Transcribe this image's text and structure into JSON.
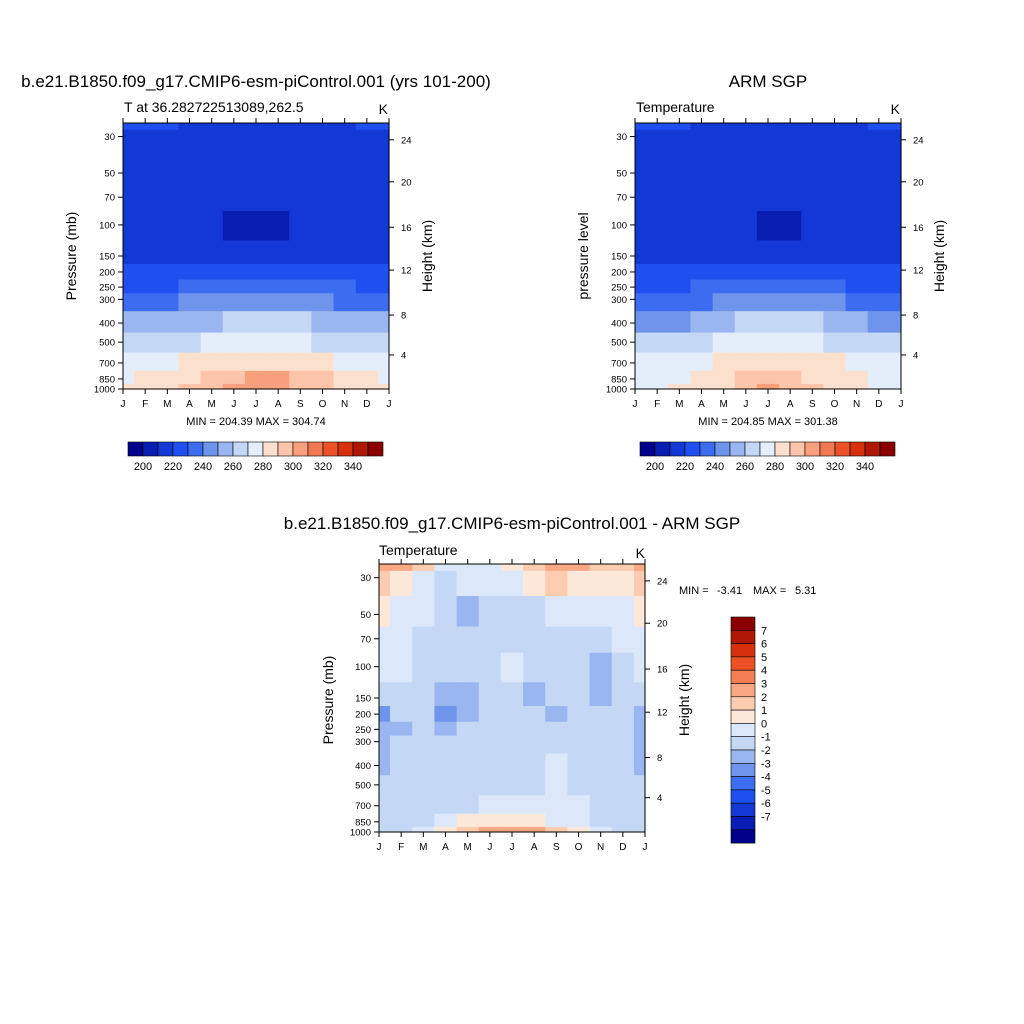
{
  "colors": {
    "abs_palette": [
      "#00008b",
      "#0a1db3",
      "#1438d6",
      "#1e50f0",
      "#3c6cf0",
      "#6e94ec",
      "#9ab6f0",
      "#c4d8f6",
      "#e4eefa",
      "#fce0ce",
      "#fcc4a8",
      "#f8a07c",
      "#f27a52",
      "#ec522a",
      "#d6300e",
      "#b01806",
      "#8a0000"
    ],
    "diff_palette": [
      "#00008b",
      "#0a1db3",
      "#1438d6",
      "#1e50f0",
      "#3c6cf0",
      "#6e94ec",
      "#9ab6f0",
      "#c4d8f6",
      "#dce8fa",
      "#fce8d8",
      "#fcccb0",
      "#f8a882",
      "#f27e54",
      "#ec5226",
      "#d6300e",
      "#b01806",
      "#8a0000"
    ]
  },
  "panels": [
    {
      "id": "model",
      "title": "b.e21.B1850.f09_g17.CMIP6-esm-piControl.001 (yrs 101-200)",
      "left_label": "T at 36.282722513089,262.5",
      "right_label": "K",
      "ylabel": "Pressure (mb)",
      "ylabel_right": "Height (km)",
      "stats": "MIN = 204.39 MAX = 304.74",
      "colorbar_labels": [
        "200",
        "220",
        "240",
        "260",
        "280",
        "300",
        "320",
        "340"
      ]
    },
    {
      "id": "obs",
      "title": "ARM SGP",
      "left_label": "Temperature",
      "right_label": "K",
      "ylabel": "pressure level",
      "ylabel_right": "Height (km)",
      "stats": "MIN = 204.85 MAX = 301.38",
      "colorbar_labels": [
        "200",
        "220",
        "240",
        "260",
        "280",
        "300",
        "320",
        "340"
      ]
    },
    {
      "id": "diff",
      "title": "b.e21.B1850.f09_g17.CMIP6-esm-piControl.001 - ARM SGP",
      "left_label": "Temperature",
      "right_label": "K",
      "ylabel": "Pressure (mb)",
      "ylabel_right": "Height (km)",
      "stats_min_label": "MIN =",
      "stats_min": "-3.41",
      "stats_max_label": "MAX =",
      "stats_max": "5.31",
      "colorbar_labels": [
        "7",
        "6",
        "5",
        "4",
        "3",
        "2",
        "1",
        "0",
        "-1",
        "-2",
        "-3",
        "-4",
        "-5",
        "-6",
        "-7"
      ]
    }
  ],
  "chart_data": [
    {
      "type": "heatmap",
      "title": "b.e21.B1850.f09_g17.CMIP6-esm-piControl.001 (yrs 101-200)",
      "ylabel": "Pressure (mb)",
      "x_ticks": [
        "J",
        "F",
        "M",
        "A",
        "M",
        "J",
        "J",
        "A",
        "S",
        "O",
        "N",
        "D",
        "J"
      ],
      "y_ticks": [
        30,
        50,
        70,
        100,
        150,
        200,
        250,
        300,
        400,
        500,
        700,
        850,
        1000
      ],
      "y_ticks_right": [
        24,
        20,
        16,
        12,
        8,
        4
      ],
      "levels": [
        25,
        30,
        50,
        70,
        100,
        150,
        200,
        250,
        300,
        400,
        500,
        700,
        850,
        1000
      ],
      "values": [
        [
          222,
          220,
          220,
          218,
          216,
          214,
          212,
          212,
          214,
          216,
          218,
          220,
          222
        ],
        [
          219,
          218,
          218,
          217,
          216,
          215,
          215,
          215,
          216,
          217,
          218,
          219,
          219
        ],
        [
          214,
          214,
          214,
          213,
          213,
          213,
          213,
          213,
          213,
          213,
          214,
          214,
          214
        ],
        [
          215,
          215,
          213,
          212,
          211,
          210,
          210,
          210,
          211,
          212,
          213,
          214,
          215
        ],
        [
          214,
          214,
          214,
          212,
          210,
          209,
          209,
          209,
          210,
          212,
          214,
          214,
          214
        ],
        [
          218,
          218,
          218,
          218,
          216,
          216,
          216,
          216,
          216,
          218,
          218,
          218,
          218
        ],
        [
          222,
          222,
          222,
          224,
          226,
          228,
          228,
          228,
          228,
          226,
          224,
          222,
          222
        ],
        [
          228,
          228,
          228,
          232,
          236,
          238,
          238,
          238,
          236,
          232,
          230,
          228,
          228
        ],
        [
          236,
          236,
          236,
          240,
          246,
          248,
          248,
          248,
          246,
          242,
          238,
          236,
          236
        ],
        [
          250,
          250,
          250,
          254,
          258,
          262,
          262,
          262,
          260,
          256,
          252,
          250,
          250
        ],
        [
          262,
          262,
          264,
          268,
          272,
          274,
          274,
          274,
          272,
          268,
          264,
          262,
          262
        ],
        [
          274,
          274,
          276,
          280,
          284,
          288,
          288,
          288,
          286,
          282,
          278,
          274,
          274
        ],
        [
          278,
          280,
          282,
          288,
          294,
          298,
          300,
          300,
          296,
          290,
          284,
          280,
          278
        ],
        [
          280,
          282,
          284,
          290,
          296,
          302,
          304,
          302,
          298,
          292,
          286,
          282,
          280
        ]
      ],
      "min": 204.39,
      "max": 304.74,
      "colorbar": [
        200,
        220,
        240,
        260,
        280,
        300,
        320,
        340
      ]
    },
    {
      "type": "heatmap",
      "title": "ARM SGP",
      "ylabel": "pressure level",
      "x_ticks": [
        "J",
        "F",
        "M",
        "A",
        "M",
        "J",
        "J",
        "A",
        "S",
        "O",
        "N",
        "D",
        "J"
      ],
      "y_ticks": [
        30,
        50,
        70,
        100,
        150,
        200,
        250,
        300,
        400,
        500,
        700,
        850,
        1000
      ],
      "y_ticks_right": [
        24,
        20,
        16,
        12,
        8,
        4
      ],
      "levels": [
        25,
        30,
        50,
        70,
        100,
        150,
        200,
        250,
        300,
        400,
        500,
        700,
        850,
        1000
      ],
      "values": [
        [
          220,
          220,
          220,
          218,
          216,
          214,
          212,
          212,
          214,
          216,
          218,
          220,
          220
        ],
        [
          218,
          218,
          218,
          217,
          216,
          215,
          215,
          215,
          216,
          217,
          218,
          218,
          218
        ],
        [
          213,
          213,
          213,
          213,
          213,
          213,
          213,
          213,
          213,
          213,
          213,
          213,
          213
        ],
        [
          210,
          211,
          212,
          211,
          211,
          210,
          210,
          210,
          211,
          211,
          211,
          210,
          211
        ],
        [
          213,
          213,
          213,
          212,
          211,
          210,
          209,
          209,
          210,
          211,
          212,
          213,
          213
        ],
        [
          216,
          216,
          216,
          216,
          215,
          214,
          214,
          214,
          214,
          215,
          216,
          216,
          216
        ],
        [
          222,
          222,
          222,
          224,
          226,
          228,
          228,
          228,
          228,
          226,
          224,
          222,
          222
        ],
        [
          226,
          226,
          226,
          230,
          234,
          238,
          238,
          238,
          236,
          232,
          228,
          226,
          226
        ],
        [
          234,
          234,
          234,
          238,
          244,
          248,
          248,
          248,
          246,
          240,
          236,
          234,
          234
        ],
        [
          248,
          248,
          248,
          252,
          256,
          260,
          262,
          262,
          260,
          254,
          250,
          248,
          248
        ],
        [
          260,
          260,
          262,
          266,
          270,
          272,
          274,
          272,
          270,
          266,
          262,
          260,
          260
        ],
        [
          270,
          272,
          274,
          278,
          282,
          284,
          286,
          286,
          284,
          280,
          276,
          272,
          270
        ],
        [
          274,
          276,
          278,
          282,
          286,
          290,
          292,
          292,
          288,
          284,
          280,
          276,
          274
        ],
        [
          276,
          278,
          280,
          284,
          288,
          294,
          300,
          296,
          290,
          286,
          282,
          278,
          276
        ]
      ],
      "min": 204.85,
      "max": 301.38,
      "colorbar": [
        200,
        220,
        240,
        260,
        280,
        300,
        320,
        340
      ]
    },
    {
      "type": "heatmap",
      "title": "b.e21.B1850.f09_g17.CMIP6-esm-piControl.001 - ARM SGP",
      "ylabel": "Pressure (mb)",
      "x_ticks": [
        "J",
        "F",
        "M",
        "A",
        "M",
        "J",
        "J",
        "A",
        "S",
        "O",
        "N",
        "D",
        "J"
      ],
      "y_ticks": [
        30,
        50,
        70,
        100,
        150,
        200,
        250,
        300,
        400,
        500,
        700,
        850,
        1000
      ],
      "y_ticks_right": [
        24,
        20,
        16,
        12,
        8,
        4
      ],
      "levels": [
        25,
        30,
        50,
        70,
        100,
        150,
        200,
        250,
        300,
        400,
        500,
        700,
        850,
        1000
      ],
      "values": [
        [
          3.5,
          3.5,
          2.0,
          0.5,
          0.3,
          0.5,
          1.0,
          2.0,
          3.5,
          3.5,
          2.5,
          2.5,
          3.5
        ],
        [
          2.0,
          1.5,
          0.5,
          -0.5,
          0.0,
          0.5,
          0.5,
          1.0,
          2.0,
          1.5,
          1.0,
          1.0,
          2.0
        ],
        [
          1.0,
          0.5,
          0.0,
          -0.5,
          -1.5,
          -0.5,
          -0.5,
          -0.5,
          0.0,
          0.0,
          0.0,
          0.5,
          1.0
        ],
        [
          0.5,
          0.3,
          -0.3,
          -0.5,
          -1.0,
          -0.5,
          -0.5,
          -0.5,
          -0.5,
          -0.5,
          -0.5,
          0.0,
          0.5
        ],
        [
          0.5,
          0.3,
          -0.5,
          -0.5,
          -0.5,
          -0.5,
          0.5,
          -0.5,
          -0.5,
          -0.5,
          -1.2,
          -0.5,
          0.5
        ],
        [
          -0.5,
          -0.5,
          -0.5,
          -1.5,
          -1.5,
          -0.5,
          -0.5,
          -1.5,
          -1.0,
          -0.5,
          -1.5,
          -1.0,
          -0.5
        ],
        [
          -2.5,
          -1.0,
          -0.5,
          -2.5,
          -2.0,
          -0.5,
          -0.5,
          -0.5,
          -2.0,
          -1.0,
          -1.0,
          -1.0,
          -2.0
        ],
        [
          -1.5,
          -1.5,
          -0.5,
          -1.5,
          -1.0,
          -1.0,
          -0.5,
          -1.0,
          -0.5,
          -1.0,
          -0.5,
          -1.0,
          -1.5
        ],
        [
          -1.5,
          -1.0,
          -0.5,
          -1.0,
          -1.0,
          -1.0,
          -1.0,
          -1.0,
          -0.5,
          -1.0,
          -0.5,
          -1.0,
          -1.5
        ],
        [
          -1.5,
          -0.5,
          -0.5,
          -0.5,
          -0.5,
          -0.5,
          -0.5,
          -0.5,
          0.5,
          -0.5,
          -0.5,
          -1.0,
          -1.5
        ],
        [
          -1.0,
          -0.5,
          -0.5,
          -0.5,
          -0.5,
          -0.5,
          -0.5,
          -0.3,
          0.5,
          -0.5,
          -0.5,
          -1.0,
          -1.0
        ],
        [
          -1.0,
          -0.5,
          -0.5,
          -0.5,
          -0.5,
          0.5,
          0.5,
          0.5,
          0.5,
          0.5,
          -0.5,
          -1.0,
          -1.0
        ],
        [
          -1.0,
          -0.5,
          -0.5,
          0.5,
          1.0,
          1.5,
          1.5,
          1.5,
          0.5,
          0.5,
          -0.5,
          -1.0,
          -1.0
        ],
        [
          -1.0,
          -0.5,
          0.5,
          1.5,
          2.5,
          3.5,
          3.5,
          3.0,
          2.0,
          1.0,
          0.5,
          -0.5,
          -1.0
        ]
      ],
      "min": -3.41,
      "max": 5.31,
      "colorbar": [
        7,
        6,
        5,
        4,
        3,
        2,
        1,
        0,
        -1,
        -2,
        -3,
        -4,
        -5,
        -6,
        -7
      ]
    }
  ]
}
